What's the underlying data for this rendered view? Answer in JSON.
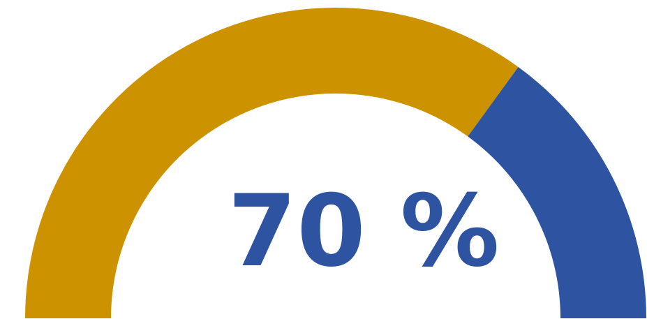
{
  "chart_data": {
    "type": "gauge",
    "value": 70,
    "min": 0,
    "max": 100,
    "value_label": "70 %",
    "colors": {
      "filled": "#CC9200",
      "remaining": "#2E53A0",
      "text": "#2E53A0"
    }
  }
}
